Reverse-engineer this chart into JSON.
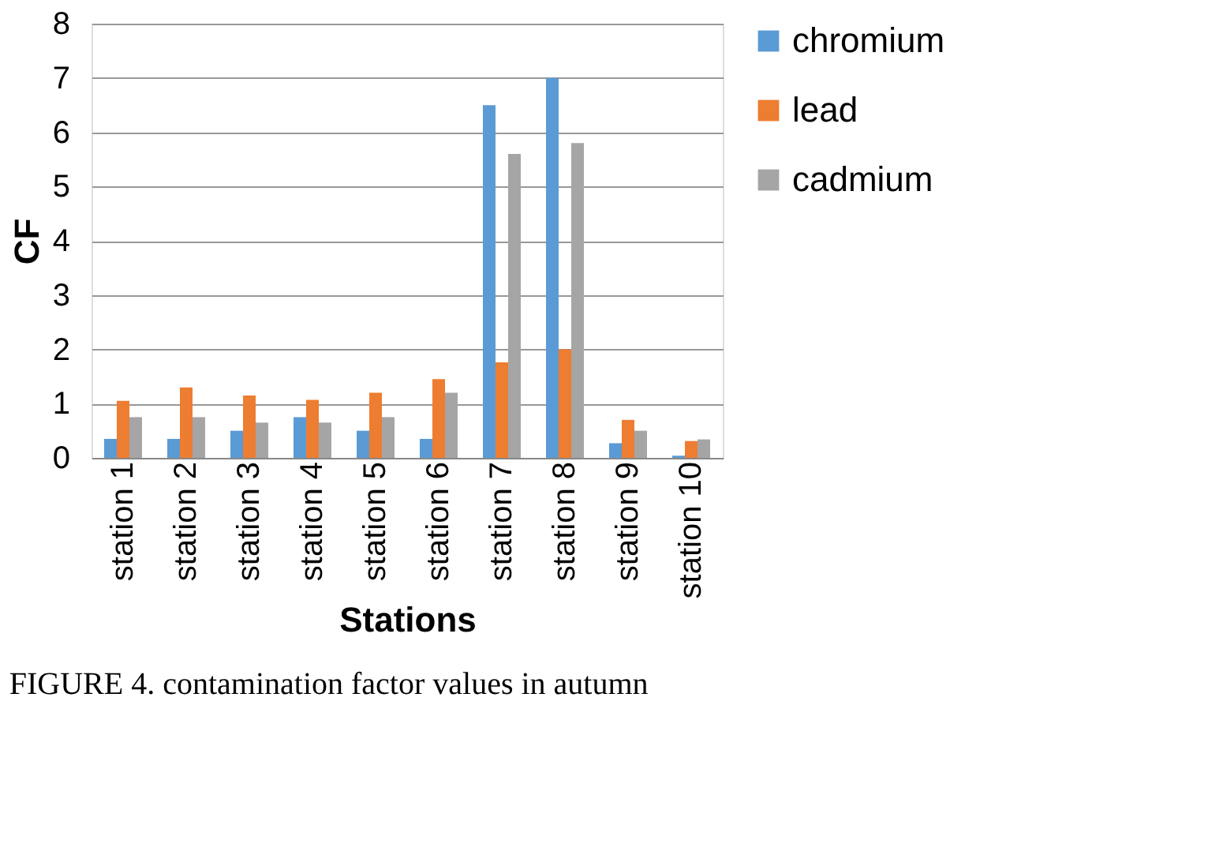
{
  "chart_data": {
    "type": "bar",
    "xlabel": "Stations",
    "ylabel": "CF",
    "categories": [
      "station 1",
      "station 2",
      "station 3",
      "station 4",
      "station 5",
      "station 6",
      "station 7",
      "station 8",
      "station 9",
      "station 10"
    ],
    "series": [
      {
        "name": "chromium",
        "color": "#5b9bd5",
        "values": [
          0.35,
          0.35,
          0.5,
          0.75,
          0.5,
          0.35,
          6.5,
          7.0,
          0.27,
          0.04
        ]
      },
      {
        "name": "lead",
        "color": "#ed7d31",
        "values": [
          1.05,
          1.3,
          1.15,
          1.07,
          1.2,
          1.45,
          1.76,
          2.0,
          0.7,
          0.31
        ]
      },
      {
        "name": "cadmium",
        "color": "#a5a5a5",
        "values": [
          0.75,
          0.75,
          0.65,
          0.65,
          0.75,
          1.2,
          5.6,
          5.8,
          0.5,
          0.34
        ]
      }
    ],
    "ylim": [
      0,
      8
    ],
    "yticks": [
      0,
      1,
      2,
      3,
      4,
      5,
      6,
      7,
      8
    ],
    "grid": "y",
    "legend": "right",
    "annotations": [
      "FIGURE 4. contamination factor values in autumn"
    ]
  }
}
